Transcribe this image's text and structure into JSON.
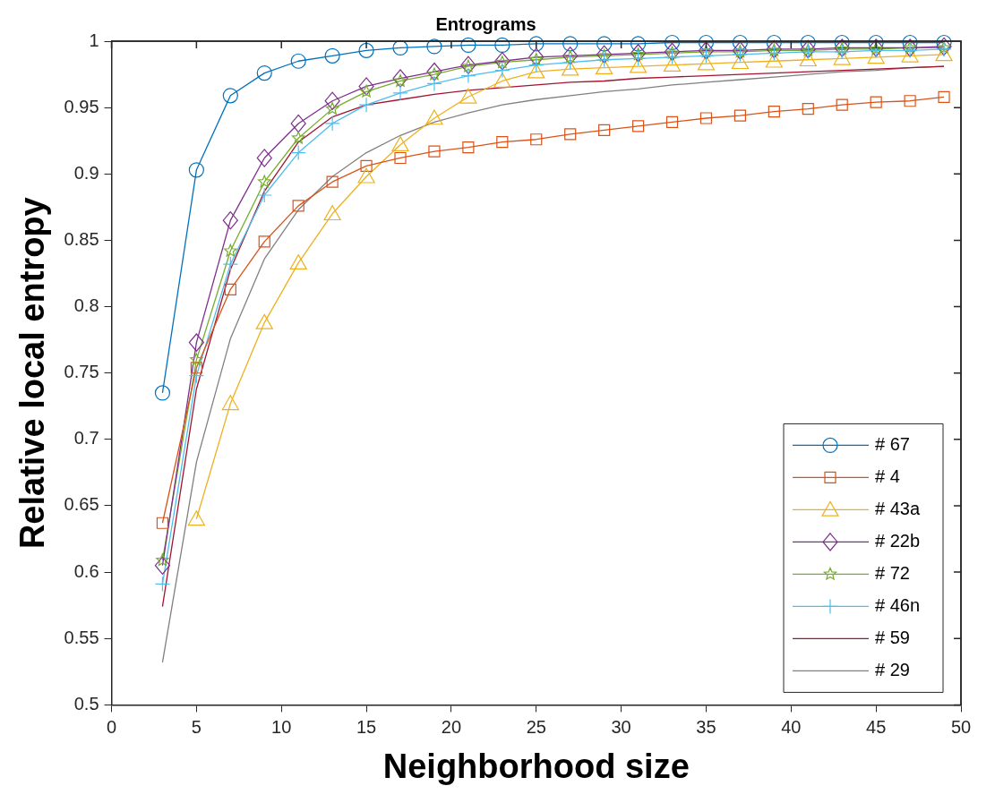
{
  "chart_data": {
    "type": "line",
    "title": "Entrograms",
    "xlabel": "Neighborhood size",
    "ylabel": "Relative local entropy",
    "x": [
      3,
      5,
      7,
      9,
      11,
      13,
      15,
      17,
      19,
      21,
      23,
      25,
      27,
      29,
      31,
      33,
      35,
      37,
      39,
      41,
      43,
      45,
      47,
      49
    ],
    "xlim": [
      0,
      50
    ],
    "xticks": [
      0,
      5,
      10,
      15,
      20,
      25,
      30,
      35,
      40,
      45,
      50
    ],
    "ylim": [
      0.5,
      1
    ],
    "yticks": [
      0.5,
      0.55,
      0.6,
      0.65,
      0.7,
      0.75,
      0.8,
      0.85,
      0.9,
      0.95,
      1
    ],
    "grid": false,
    "legend": "bottom right",
    "line_style": "solid",
    "series": [
      {
        "name": "# 67",
        "color": "#0072bd",
        "marker": "circle",
        "values": [
          0.735,
          0.903,
          0.959,
          0.976,
          0.985,
          0.989,
          0.993,
          0.995,
          0.996,
          0.997,
          0.997,
          0.998,
          0.998,
          0.998,
          0.998,
          0.999,
          0.999,
          0.999,
          0.999,
          0.999,
          0.999,
          0.999,
          0.999,
          0.999
        ]
      },
      {
        "name": "# 4",
        "color": "#d95319",
        "marker": "square",
        "values": [
          0.637,
          0.754,
          0.813,
          0.849,
          0.876,
          0.894,
          0.906,
          0.912,
          0.917,
          0.92,
          0.924,
          0.926,
          0.93,
          0.933,
          0.936,
          0.939,
          0.942,
          0.944,
          0.947,
          0.949,
          0.952,
          0.954,
          0.955,
          0.958
        ]
      },
      {
        "name": "# 43a",
        "color": "#edb120",
        "marker": "triangle",
        "values": [
          null,
          0.64,
          0.727,
          0.788,
          0.833,
          0.87,
          0.898,
          0.922,
          0.942,
          0.958,
          0.97,
          0.977,
          0.979,
          0.98,
          0.981,
          0.982,
          0.983,
          0.984,
          0.985,
          0.986,
          0.987,
          0.988,
          0.989,
          0.99
        ]
      },
      {
        "name": "# 22b",
        "color": "#7e2f8e",
        "marker": "diamond",
        "values": [
          0.605,
          0.773,
          0.865,
          0.912,
          0.938,
          0.955,
          0.966,
          0.972,
          0.977,
          0.982,
          0.985,
          0.988,
          0.989,
          0.99,
          0.991,
          0.992,
          0.993,
          0.993,
          0.994,
          0.994,
          0.995,
          0.995,
          0.995,
          0.996
        ]
      },
      {
        "name": "# 72",
        "color": "#77ac30",
        "marker": "star",
        "values": [
          0.609,
          0.76,
          0.842,
          0.894,
          0.927,
          0.949,
          0.962,
          0.97,
          0.975,
          0.981,
          0.984,
          0.986,
          0.988,
          0.989,
          0.99,
          0.991,
          0.992,
          0.992,
          0.993,
          0.993,
          0.994,
          0.994,
          0.995,
          0.995
        ]
      },
      {
        "name": "# 46n",
        "color": "#4dbeee",
        "marker": "cross",
        "values": [
          0.591,
          0.748,
          0.832,
          0.884,
          0.916,
          0.938,
          0.952,
          0.961,
          0.968,
          0.974,
          0.978,
          0.982,
          0.984,
          0.986,
          0.987,
          0.988,
          0.989,
          0.99,
          0.991,
          0.992,
          0.992,
          0.993,
          0.993,
          0.994
        ]
      },
      {
        "name": "# 59",
        "color": "#a2142f",
        "marker": "none",
        "values": [
          0.574,
          0.738,
          0.828,
          0.887,
          0.924,
          0.943,
          0.952,
          0.956,
          0.96,
          0.963,
          0.965,
          0.967,
          0.969,
          0.97,
          0.972,
          0.973,
          0.974,
          0.975,
          0.976,
          0.977,
          0.978,
          0.979,
          0.98,
          0.981
        ]
      },
      {
        "name": "# 29",
        "color": "#808080",
        "marker": "none",
        "values": [
          0.532,
          0.683,
          0.776,
          0.836,
          0.873,
          0.898,
          0.916,
          0.929,
          0.939,
          0.946,
          0.952,
          0.956,
          0.959,
          0.962,
          0.964,
          0.967,
          0.969,
          0.971,
          0.973,
          0.975,
          0.977,
          0.978,
          0.98,
          0.981
        ]
      }
    ]
  }
}
